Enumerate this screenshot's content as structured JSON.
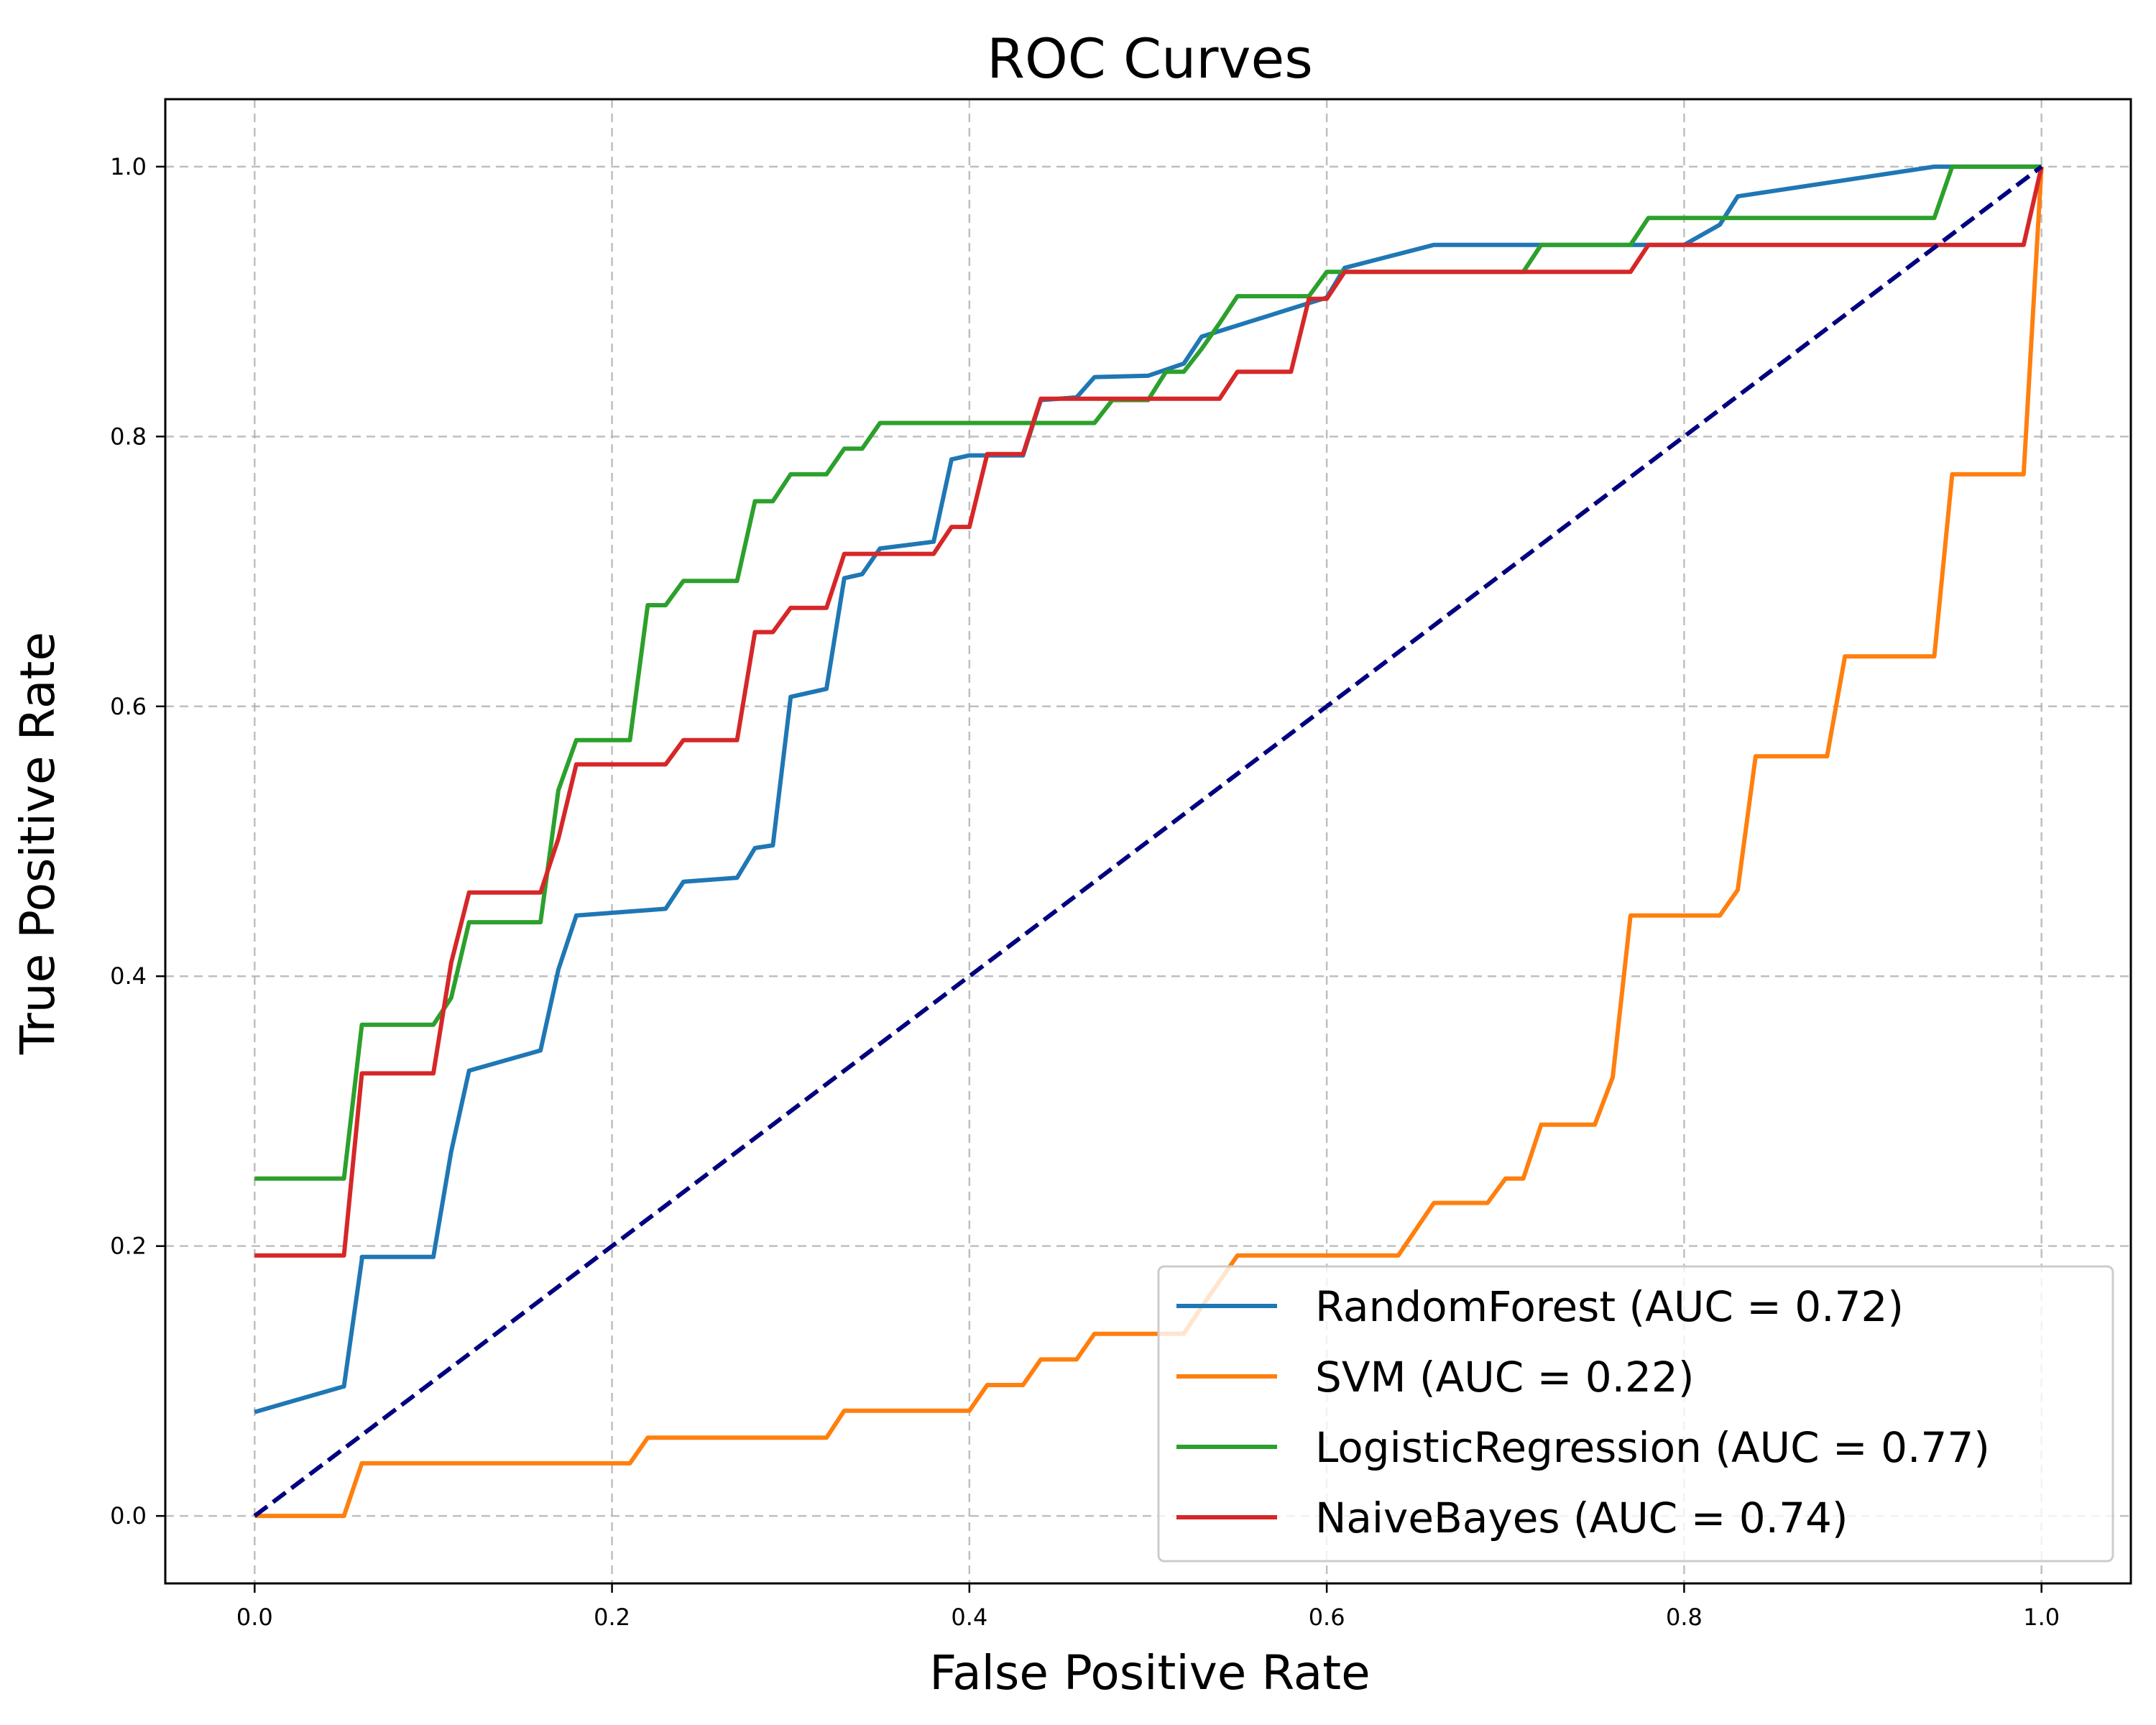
{
  "chart_data": {
    "type": "line",
    "title": "ROC Curves",
    "xlabel": "False Positive Rate",
    "ylabel": "True Positive Rate",
    "xlim": [
      -0.05,
      1.05
    ],
    "ylim": [
      -0.05,
      1.05
    ],
    "xticks": [
      "0.0",
      "0.2",
      "0.4",
      "0.6",
      "0.8",
      "1.0"
    ],
    "yticks": [
      "0.0",
      "0.2",
      "0.4",
      "0.6",
      "0.8",
      "1.0"
    ],
    "grid": true,
    "legend_position": "lower-right",
    "series": [
      {
        "name": "RandomForest (AUC = 0.72)",
        "color": "#1f77b4",
        "x": [
          0.0,
          0.05,
          0.06,
          0.06,
          0.1,
          0.11,
          0.12,
          0.16,
          0.17,
          0.18,
          0.23,
          0.24,
          0.27,
          0.28,
          0.29,
          0.3,
          0.32,
          0.33,
          0.34,
          0.35,
          0.38,
          0.39,
          0.4,
          0.43,
          0.44,
          0.46,
          0.47,
          0.5,
          0.52,
          0.53,
          0.6,
          0.61,
          0.66,
          0.8,
          0.82,
          0.83,
          0.94,
          0.95,
          1.0
        ],
        "y": [
          0.077,
          0.096,
          0.19,
          0.192,
          0.192,
          0.27,
          0.33,
          0.345,
          0.405,
          0.445,
          0.45,
          0.47,
          0.473,
          0.495,
          0.497,
          0.607,
          0.613,
          0.695,
          0.698,
          0.717,
          0.722,
          0.783,
          0.786,
          0.786,
          0.827,
          0.829,
          0.844,
          0.845,
          0.854,
          0.874,
          0.903,
          0.925,
          0.942,
          0.942,
          0.957,
          0.978,
          1.0,
          1.0,
          1.0
        ]
      },
      {
        "name": "SVM (AUC = 0.22)",
        "color": "#ff7f0e",
        "x": [
          0.0,
          0.05,
          0.06,
          0.21,
          0.22,
          0.32,
          0.33,
          0.4,
          0.41,
          0.43,
          0.44,
          0.46,
          0.47,
          0.52,
          0.53,
          0.54,
          0.55,
          0.64,
          0.66,
          0.69,
          0.7,
          0.71,
          0.72,
          0.75,
          0.76,
          0.77,
          0.78,
          0.82,
          0.83,
          0.84,
          0.88,
          0.89,
          0.94,
          0.95,
          0.99,
          1.0
        ],
        "y": [
          0.0,
          0.0,
          0.039,
          0.039,
          0.058,
          0.058,
          0.078,
          0.078,
          0.097,
          0.097,
          0.116,
          0.116,
          0.135,
          0.135,
          0.155,
          0.174,
          0.193,
          0.193,
          0.232,
          0.232,
          0.25,
          0.25,
          0.29,
          0.29,
          0.325,
          0.445,
          0.445,
          0.445,
          0.464,
          0.563,
          0.563,
          0.637,
          0.637,
          0.772,
          0.772,
          1.0
        ]
      },
      {
        "name": "LogisticRegression (AUC = 0.77)",
        "color": "#2ca02c",
        "x": [
          0.0,
          0.05,
          0.06,
          0.1,
          0.11,
          0.12,
          0.16,
          0.17,
          0.18,
          0.21,
          0.22,
          0.23,
          0.24,
          0.27,
          0.28,
          0.29,
          0.3,
          0.32,
          0.33,
          0.34,
          0.35,
          0.47,
          0.48,
          0.5,
          0.51,
          0.52,
          0.53,
          0.54,
          0.55,
          0.59,
          0.6,
          0.62,
          0.71,
          0.72,
          0.76,
          0.77,
          0.78,
          0.94,
          0.95,
          1.0
        ],
        "y": [
          0.25,
          0.25,
          0.364,
          0.364,
          0.384,
          0.44,
          0.44,
          0.538,
          0.575,
          0.575,
          0.675,
          0.675,
          0.693,
          0.693,
          0.752,
          0.752,
          0.772,
          0.772,
          0.791,
          0.791,
          0.81,
          0.81,
          0.827,
          0.827,
          0.848,
          0.848,
          0.865,
          0.884,
          0.904,
          0.904,
          0.922,
          0.922,
          0.922,
          0.942,
          0.942,
          0.942,
          0.962,
          0.962,
          1.0,
          1.0
        ]
      },
      {
        "name": "NaiveBayes (AUC = 0.74)",
        "color": "#d62728",
        "x": [
          0.0,
          0.05,
          0.06,
          0.1,
          0.11,
          0.12,
          0.16,
          0.17,
          0.18,
          0.23,
          0.24,
          0.27,
          0.28,
          0.29,
          0.3,
          0.32,
          0.33,
          0.38,
          0.39,
          0.4,
          0.41,
          0.43,
          0.44,
          0.54,
          0.55,
          0.58,
          0.59,
          0.6,
          0.61,
          0.77,
          0.78,
          0.99,
          1.0
        ],
        "y": [
          0.193,
          0.193,
          0.328,
          0.328,
          0.41,
          0.462,
          0.462,
          0.502,
          0.557,
          0.557,
          0.575,
          0.575,
          0.655,
          0.655,
          0.673,
          0.673,
          0.713,
          0.713,
          0.733,
          0.733,
          0.787,
          0.787,
          0.828,
          0.828,
          0.848,
          0.848,
          0.902,
          0.902,
          0.922,
          0.922,
          0.942,
          0.942,
          1.0
        ]
      }
    ],
    "reference_line": {
      "color": "#000080",
      "x": [
        0.0,
        1.0
      ],
      "y": [
        0.0,
        1.0
      ],
      "style": "dashed"
    }
  }
}
